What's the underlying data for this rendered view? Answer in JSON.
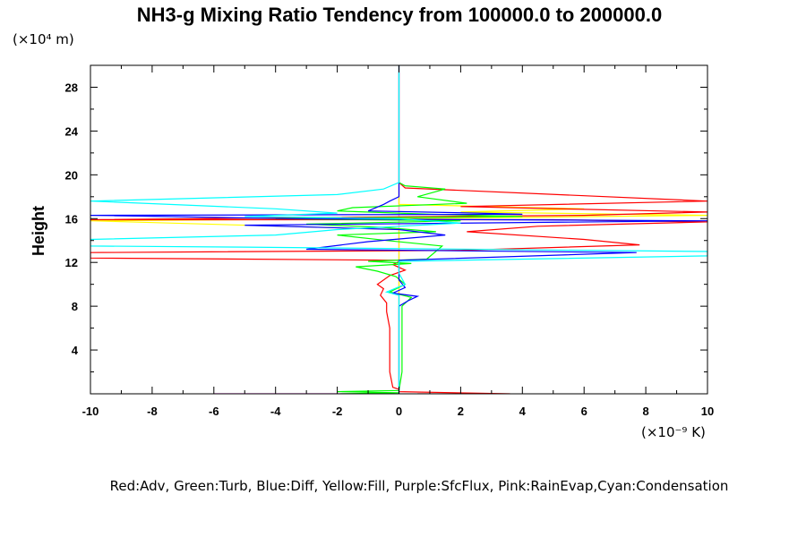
{
  "chart_data": {
    "type": "line",
    "title": "NH3-g Mixing Ratio Tendency from 100000.0 to 200000.0",
    "ylabel": "Height",
    "y_unit_label": "(×10⁴ m)",
    "x_unit_label": "(×10⁻⁹ K)",
    "legend_text": "Red:Adv, Green:Turb, Blue:Diff, Yellow:Fill, Purple:SfcFlux, Pink:RainEvap,Cyan:Condensation",
    "xlim": [
      -10,
      10
    ],
    "ylim": [
      0,
      30
    ],
    "x_ticks": [
      -10,
      -8,
      -6,
      -4,
      -2,
      0,
      2,
      4,
      6,
      8,
      10
    ],
    "y_ticks": [
      4,
      8,
      12,
      16,
      20,
      24,
      28
    ],
    "grid": false,
    "series": [
      {
        "name": "Adv",
        "color": "#ff0000",
        "points": [
          [
            0.6,
            0
          ],
          [
            3.6,
            0
          ],
          [
            0,
            0.2
          ],
          [
            0,
            0.4
          ],
          [
            -0.2,
            0.6
          ],
          [
            -0.3,
            2
          ],
          [
            -0.3,
            6
          ],
          [
            -0.4,
            7.5
          ],
          [
            -0.4,
            8.3
          ],
          [
            -0.6,
            9
          ],
          [
            -0.5,
            9.6
          ],
          [
            -0.7,
            10
          ],
          [
            -0.3,
            10.8
          ],
          [
            0.2,
            11.3
          ],
          [
            -0.2,
            11.8
          ],
          [
            0.1,
            12.2
          ],
          [
            -10,
            12.4
          ],
          [
            -10,
            12.9
          ],
          [
            2,
            13.1
          ],
          [
            7.8,
            13.6
          ],
          [
            6,
            14.1
          ],
          [
            2.2,
            14.8
          ],
          [
            4.5,
            15.3
          ],
          [
            10,
            15.7
          ],
          [
            5,
            15.9
          ],
          [
            -10,
            15.9
          ],
          [
            -2.5,
            16.1
          ],
          [
            6,
            16.3
          ],
          [
            10,
            16.6
          ],
          [
            2,
            17.1
          ],
          [
            10,
            17.6
          ],
          [
            0.2,
            18.8
          ],
          [
            0,
            19.3
          ]
        ]
      },
      {
        "name": "Turb",
        "color": "#00ff00",
        "points": [
          [
            -1.9,
            0
          ],
          [
            0,
            0.1
          ],
          [
            -2,
            0.2
          ],
          [
            0,
            0.3
          ],
          [
            0.1,
            2
          ],
          [
            0.1,
            8
          ],
          [
            0.4,
            8.8
          ],
          [
            -0.3,
            9.3
          ],
          [
            0.2,
            10
          ],
          [
            -0.1,
            10.7
          ],
          [
            -0.7,
            11.2
          ],
          [
            -1.4,
            11.6
          ],
          [
            0.4,
            11.9
          ],
          [
            -1,
            12.1
          ],
          [
            0.9,
            12.3
          ],
          [
            1.4,
            13.5
          ],
          [
            -0.4,
            14
          ],
          [
            -2,
            14.5
          ],
          [
            1.2,
            14.8
          ],
          [
            -0.5,
            15.2
          ],
          [
            -3,
            15.5
          ],
          [
            2,
            15.8
          ],
          [
            -4,
            16
          ],
          [
            4,
            16.2
          ],
          [
            1,
            16.4
          ],
          [
            -2,
            16.7
          ],
          [
            -1.5,
            17
          ],
          [
            2.2,
            17.4
          ],
          [
            0.6,
            18
          ],
          [
            1.5,
            18.7
          ],
          [
            0.2,
            19
          ],
          [
            0,
            19.3
          ]
        ]
      },
      {
        "name": "Diff",
        "color": "#0000ff",
        "points": [
          [
            0,
            0
          ],
          [
            0,
            2
          ],
          [
            0,
            8
          ],
          [
            0.3,
            8.5
          ],
          [
            0.6,
            8.9
          ],
          [
            -0.2,
            9.2
          ],
          [
            0.2,
            9.7
          ],
          [
            0,
            10.4
          ],
          [
            0,
            12.2
          ],
          [
            7.7,
            12.9
          ],
          [
            -3,
            13.2
          ],
          [
            -1,
            13.9
          ],
          [
            1.5,
            14.5
          ],
          [
            0,
            15
          ],
          [
            -5,
            15.4
          ],
          [
            10,
            15.8
          ],
          [
            -3.5,
            16
          ],
          [
            -10,
            16.3
          ],
          [
            4,
            16.4
          ],
          [
            2.5,
            16.5
          ],
          [
            -1,
            16.7
          ],
          [
            -0.5,
            17.3
          ],
          [
            -0.3,
            17.6
          ],
          [
            0,
            18
          ],
          [
            0,
            30
          ]
        ]
      },
      {
        "name": "Fill",
        "color": "#ffff00",
        "points": [
          [
            0,
            0
          ],
          [
            0,
            15
          ],
          [
            -10,
            15.8
          ],
          [
            0,
            16
          ],
          [
            10,
            16.3
          ],
          [
            2,
            16.6
          ],
          [
            6,
            16.9
          ],
          [
            0,
            17.3
          ],
          [
            0,
            30
          ]
        ]
      },
      {
        "name": "SfcFlux",
        "color": "#ff00ff",
        "points": [
          [
            -6,
            0
          ],
          [
            -3.5,
            0
          ],
          [
            0,
            0
          ],
          [
            0,
            30
          ]
        ]
      },
      {
        "name": "RainEvap",
        "color": "#ffb0c8",
        "points": [
          [
            0,
            0
          ],
          [
            0,
            30
          ]
        ]
      },
      {
        "name": "Condensation",
        "color": "#00ffff",
        "points": [
          [
            0,
            0
          ],
          [
            0,
            8.5
          ],
          [
            0,
            9
          ],
          [
            -0.4,
            9.3
          ],
          [
            0.2,
            10
          ],
          [
            0,
            11
          ],
          [
            0,
            12.1
          ],
          [
            10,
            12.6
          ],
          [
            10,
            13
          ],
          [
            -5,
            13.4
          ],
          [
            -10,
            13.5
          ],
          [
            -10,
            14.1
          ],
          [
            -4,
            14.5
          ],
          [
            -2,
            15
          ],
          [
            2,
            15.6
          ],
          [
            0,
            16
          ],
          [
            -5,
            16.2
          ],
          [
            -2,
            16.5
          ],
          [
            -4,
            16.9
          ],
          [
            -10,
            17.6
          ],
          [
            -2,
            18.2
          ],
          [
            -0.5,
            18.7
          ],
          [
            0,
            19.3
          ],
          [
            0,
            30
          ]
        ]
      }
    ]
  }
}
